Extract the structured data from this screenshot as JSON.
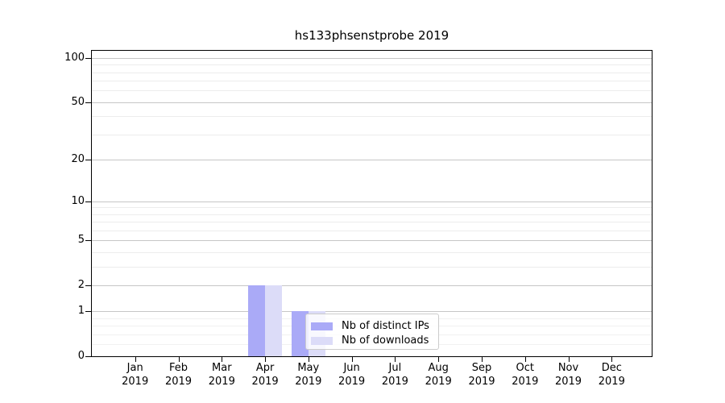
{
  "chart_data": {
    "type": "bar",
    "title": "hs133phsenstprobe 2019",
    "xlabel": "",
    "ylabel": "",
    "y_scale": "log10(value+1)",
    "ylim": [
      0,
      112
    ],
    "grid": "on",
    "legend_position": "lower-right-of-center",
    "categories": [
      "Jan",
      "Feb",
      "Mar",
      "Apr",
      "May",
      "Jun",
      "Jul",
      "Aug",
      "Sep",
      "Oct",
      "Nov",
      "Dec"
    ],
    "category_year": "2019",
    "y_major_ticks": [
      0,
      1,
      2,
      5,
      10,
      20,
      50,
      100
    ],
    "y_minor_ticks": [
      0.2,
      0.4,
      0.6,
      0.8,
      3,
      4,
      6,
      7,
      8,
      9,
      30,
      40,
      60,
      70,
      80,
      90
    ],
    "series": [
      {
        "name": "Nb of distinct IPs",
        "color": "#aaaaf7",
        "values": [
          0,
          0,
          0,
          2,
          1,
          0,
          0,
          0,
          0,
          0,
          0,
          0
        ]
      },
      {
        "name": "Nb of downloads",
        "color": "#dcdcf8",
        "values": [
          0,
          0,
          0,
          2,
          1,
          0,
          0,
          0,
          0,
          0,
          0,
          0
        ]
      }
    ],
    "colors": {
      "axis": "#000000",
      "major_grid": "#c6c6c6",
      "minor_grid": "#ececec",
      "background": "#ffffff"
    }
  }
}
